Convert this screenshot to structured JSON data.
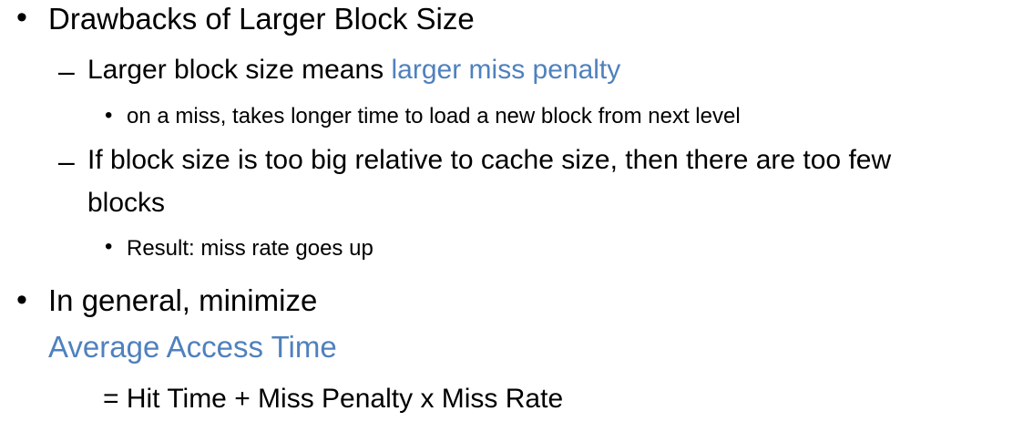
{
  "slide": {
    "bullet_1": {
      "text": "Drawbacks of Larger Block Size",
      "sub_1": {
        "prefix": "Larger block size means ",
        "highlight": "larger miss penalty",
        "detail": "on a miss, takes longer time to load a new block from next level"
      },
      "sub_2": {
        "line_1": "If block size is too big relative to cache size, then there are too few",
        "line_2": "blocks",
        "detail": "Result: miss rate goes up"
      }
    },
    "bullet_2": {
      "text": "In general, minimize",
      "highlight": "Average Access Time",
      "formula": "= Hit Time +  Miss Penalty x Miss Rate"
    },
    "symbols": {
      "level1_bullet": "•",
      "level2_dash": "–",
      "level3_bullet": "•"
    },
    "colors": {
      "text": "#000000",
      "accent": "#4f81bd",
      "background": "#ffffff"
    }
  }
}
